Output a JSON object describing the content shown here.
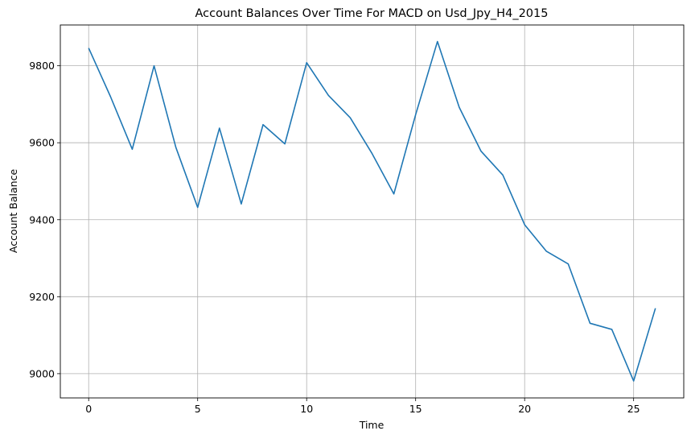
{
  "chart_data": {
    "type": "line",
    "title": "Account Balances Over Time For MACD on Usd_Jpy_H4_2015",
    "xlabel": "Time",
    "ylabel": "Account Balance",
    "xlim": [
      -1.3,
      27.3
    ],
    "ylim": [
      8937,
      9906
    ],
    "xticks": [
      0,
      5,
      10,
      15,
      20,
      25
    ],
    "yticks": [
      9000,
      9200,
      9400,
      9600,
      9800
    ],
    "grid": true,
    "legend": false,
    "line_color": "#1f77b4",
    "grid_color": "#b0b0b0",
    "series": [
      {
        "x": [
          0,
          1,
          2,
          3,
          4,
          5,
          6,
          7,
          8,
          9,
          10,
          11,
          12,
          13,
          14,
          15,
          16,
          17,
          18,
          19,
          20,
          21,
          22,
          23,
          24,
          25,
          26
        ],
        "values": [
          9846,
          9720,
          9583,
          9800,
          9588,
          9432,
          9638,
          9441,
          9647,
          9597,
          9808,
          9723,
          9665,
          9572,
          9467,
          9673,
          9863,
          9692,
          9578,
          9516,
          9387,
          9318,
          9285,
          9131,
          9115,
          8981,
          9170
        ]
      }
    ]
  }
}
